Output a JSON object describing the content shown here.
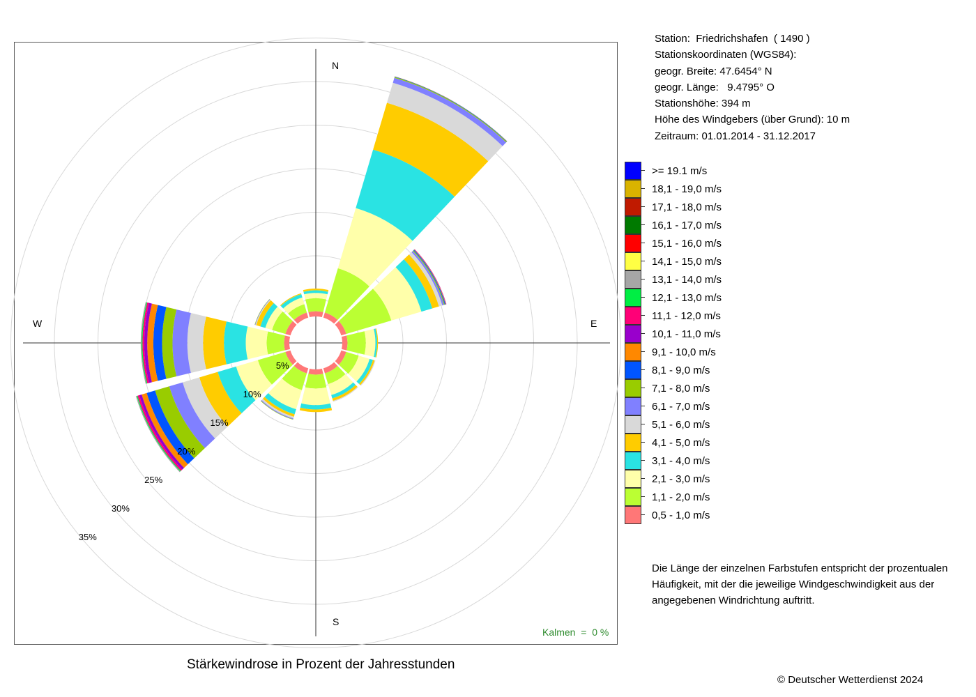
{
  "station_info": {
    "line1": "Station:  Friedrichshafen  ( 1490 )",
    "line2": "Stationskoordinaten (WGS84):",
    "line3": "geogr. Breite: 47.6454° N",
    "line4": "geogr. Länge:   9.4795° O",
    "line5": "Stationshöhe: 394 m",
    "line6": "Höhe des Windgebers (über Grund): 10 m",
    "line7": "Zeitraum: 01.01.2014 - 31.12.2017"
  },
  "explanation": "Die Länge der einzelnen Farbstufen entspricht der prozentualen Häufigkeit, mit der die jeweilige Windgeschwindigkeit aus der angegebenen Windrichtung auftritt.",
  "footer": {
    "title": "Stärkewindrose in Prozent der Jahresstunden",
    "copyright": "© Deutscher Wetterdienst  2024",
    "calm": "Kalmen  =  0 %"
  },
  "chart_data": {
    "type": "wind-rose",
    "title": "Stärkewindrose in Prozent der Jahresstunden",
    "calm_percent": 0,
    "ring_labels": [
      "5%",
      "10%",
      "15%",
      "20%",
      "25%",
      "30%",
      "35%"
    ],
    "ring_values": [
      5,
      10,
      15,
      20,
      25,
      30,
      35
    ],
    "direction_labels": {
      "N": "N",
      "E": "E",
      "S": "S",
      "W": "W"
    },
    "legend": [
      {
        "label": ">= 19.1 m/s",
        "color": "#0000ff"
      },
      {
        "label": "18,1 - 19,0 m/s",
        "color": "#d9b300"
      },
      {
        "label": "17,1 - 18,0 m/s",
        "color": "#c01a00"
      },
      {
        "label": "16,1 - 17,0 m/s",
        "color": "#007a00"
      },
      {
        "label": "15,1 - 16,0 m/s",
        "color": "#ff0000"
      },
      {
        "label": "14,1 - 15,0 m/s",
        "color": "#ffff44"
      },
      {
        "label": "13,1 - 14,0 m/s",
        "color": "#a6a6a6"
      },
      {
        "label": "12,1 - 13,0 m/s",
        "color": "#00ee44"
      },
      {
        "label": "11,1 - 12,0 m/s",
        "color": "#ff0077"
      },
      {
        "label": "10,1 - 11,0 m/s",
        "color": "#9900cc"
      },
      {
        "label": "9,1 - 10,0 m/s",
        "color": "#ff8800"
      },
      {
        "label": "8,1 - 9,0 m/s",
        "color": "#0055ff"
      },
      {
        "label": "7,1 - 8,0 m/s",
        "color": "#99cc00"
      },
      {
        "label": "6,1 - 7,0 m/s",
        "color": "#8080ff"
      },
      {
        "label": "5,1 - 6,0 m/s",
        "color": "#d9d9d9"
      },
      {
        "label": "4,1 - 5,0 m/s",
        "color": "#ffcc00"
      },
      {
        "label": "3,1 - 4,0 m/s",
        "color": "#2ae3e3"
      },
      {
        "label": "2,1 - 3,0 m/s",
        "color": "#ffffaa"
      },
      {
        "label": "1,1 - 2,0 m/s",
        "color": "#bbff33"
      },
      {
        "label": "0,5 - 1,0 m/s",
        "color": "#ff7777"
      }
    ],
    "series_order_inner_to_outer": [
      "0,5 - 1,0 m/s",
      "1,1 - 2,0 m/s",
      "2,1 - 3,0 m/s",
      "3,1 - 4,0 m/s",
      "4,1 - 5,0 m/s",
      "5,1 - 6,0 m/s",
      "6,1 - 7,0 m/s",
      "7,1 - 8,0 m/s",
      "8,1 - 9,0 m/s",
      "9,1 - 10,0 m/s",
      "10,1 - 11,0 m/s",
      "11,1 - 12,0 m/s",
      "12,1 - 13,0 m/s",
      "13,1 - 14,0 m/s",
      "14,1 - 15,0 m/s",
      "15,1 - 16,0 m/s",
      "16,1 - 17,0 m/s",
      "17,1 - 18,0 m/s",
      "18,1 - 19,0 m/s",
      ">= 19.1 m/s"
    ],
    "sectors": [
      {
        "direction_deg": 0,
        "values": [
          0.6,
          1.5,
          0.6,
          0.3,
          0.2
        ]
      },
      {
        "direction_deg": 30,
        "values": [
          0.6,
          5.3,
          7.2,
          7.0,
          5.6,
          2.4,
          0.6,
          0.1,
          0.05,
          0.02
        ]
      },
      {
        "direction_deg": 60,
        "values": [
          0.6,
          5.4,
          3.6,
          1.3,
          0.8,
          0.4,
          0.2,
          0.1,
          0.1,
          0.05,
          0.03,
          0.02
        ]
      },
      {
        "direction_deg": 90,
        "values": [
          0.6,
          2.1,
          1.1,
          0.2,
          0.1
        ]
      },
      {
        "direction_deg": 120,
        "values": [
          0.6,
          1.5,
          1.3,
          0.4,
          0.2,
          0.1
        ]
      },
      {
        "direction_deg": 150,
        "values": [
          0.6,
          1.3,
          1.3,
          0.4,
          0.3,
          0.1
        ]
      },
      {
        "direction_deg": 180,
        "values": [
          0.6,
          1.6,
          1.9,
          0.5,
          0.3
        ]
      },
      {
        "direction_deg": 210,
        "values": [
          0.6,
          2.0,
          2.3,
          0.6,
          0.3,
          0.2,
          0.1,
          0.05
        ]
      },
      {
        "direction_deg": 240,
        "values": [
          0.6,
          3.3,
          2.6,
          2.2,
          2.2,
          2.0,
          1.6,
          1.7,
          1.0,
          0.6,
          0.3,
          0.2,
          0.1,
          0.1
        ]
      },
      {
        "direction_deg": 270,
        "values": [
          0.6,
          2.0,
          2.4,
          2.5,
          2.4,
          1.8,
          1.7,
          1.2,
          1.0,
          0.7,
          0.35,
          0.2,
          0.1,
          0.1
        ]
      },
      {
        "direction_deg": 300,
        "values": [
          0.6,
          1.6,
          0.8,
          0.6,
          0.5,
          0.1,
          0.05,
          0.03
        ]
      },
      {
        "direction_deg": 330,
        "values": [
          0.6,
          1.0,
          0.8,
          0.4,
          0.1
        ]
      }
    ]
  }
}
